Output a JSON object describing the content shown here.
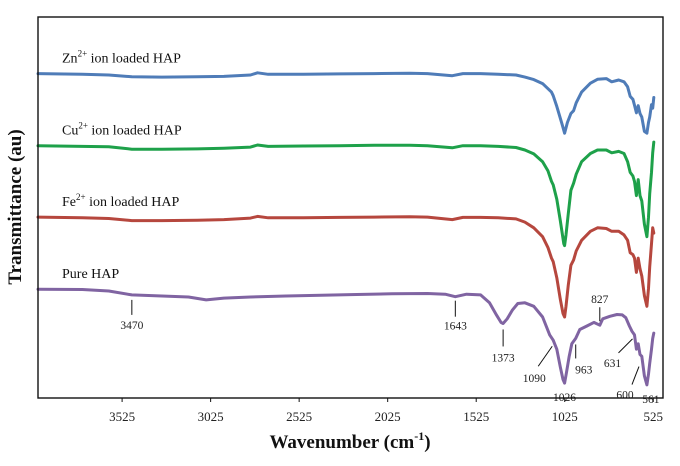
{
  "chart_data": {
    "type": "line",
    "title": "",
    "xlabel": "Wavenumber (cm-1)",
    "xlabel_parts": {
      "main": "Wavenumber (cm",
      "sup": "-1",
      "close": ")"
    },
    "ylabel": "Transmittance (au)",
    "xlim": [
      4000,
      470
    ],
    "ylim": [
      0,
      100
    ],
    "x_reversed": true,
    "grid": false,
    "legend": "inline labels above each trace (left)",
    "x_ticks": [
      3525,
      3025,
      2525,
      2025,
      1525,
      1025,
      525
    ],
    "x_tick_labels": [
      "3525",
      "3025",
      "2525",
      "2025",
      "1525",
      "1025",
      "525"
    ],
    "series": [
      {
        "name": "Zn2+ ion loaded HAP",
        "label_parts": {
          "pre": "Zn",
          "sup": "2+",
          "post": " ion loaded HAP"
        },
        "color": "#4f7cb8",
        "points": [
          [
            4000,
            89.2
          ],
          [
            3750,
            89.0
          ],
          [
            3600,
            88.8
          ],
          [
            3470,
            88.3
          ],
          [
            3300,
            88.2
          ],
          [
            3100,
            88.3
          ],
          [
            2950,
            88.4
          ],
          [
            2800,
            88.8
          ],
          [
            2760,
            89.4
          ],
          [
            2700,
            89.0
          ],
          [
            2500,
            89.0
          ],
          [
            2300,
            89.1
          ],
          [
            2100,
            89.2
          ],
          [
            1900,
            89.3
          ],
          [
            1800,
            89.2
          ],
          [
            1660,
            88.6
          ],
          [
            1600,
            89.2
          ],
          [
            1500,
            89.2
          ],
          [
            1400,
            89.0
          ],
          [
            1300,
            88.8
          ],
          [
            1250,
            88.2
          ],
          [
            1200,
            87.5
          ],
          [
            1150,
            86.4
          ],
          [
            1100,
            84.0
          ],
          [
            1090,
            83.0
          ],
          [
            1070,
            80.0
          ],
          [
            1040,
            75.0
          ],
          [
            1026,
            72.5
          ],
          [
            1010,
            75.5
          ],
          [
            990,
            78.0
          ],
          [
            975,
            78.8
          ],
          [
            960,
            81.0
          ],
          [
            930,
            84.0
          ],
          [
            880,
            86.5
          ],
          [
            840,
            87.6
          ],
          [
            790,
            87.8
          ],
          [
            760,
            86.9
          ],
          [
            720,
            87.4
          ],
          [
            690,
            86.9
          ],
          [
            670,
            85.5
          ],
          [
            655,
            82.8
          ],
          [
            640,
            82.0
          ],
          [
            631,
            80.3
          ],
          [
            620,
            78.2
          ],
          [
            610,
            80.2
          ],
          [
            600,
            78.0
          ],
          [
            590,
            77.0
          ],
          [
            575,
            73.0
          ],
          [
            561,
            72.5
          ],
          [
            552,
            75.5
          ],
          [
            545,
            77.0
          ],
          [
            535,
            80.5
          ],
          [
            528,
            79.5
          ],
          [
            522,
            82.5
          ]
        ]
      },
      {
        "name": "Cu2+ ion loaded HAP",
        "label_parts": {
          "pre": "Cu",
          "sup": "2+",
          "post": " ion loaded HAP"
        },
        "color": "#1ea14a",
        "points": [
          [
            4000,
            69.0
          ],
          [
            3750,
            68.8
          ],
          [
            3600,
            68.7
          ],
          [
            3470,
            68.0
          ],
          [
            3300,
            68.0
          ],
          [
            3100,
            68.1
          ],
          [
            2950,
            68.3
          ],
          [
            2800,
            68.6
          ],
          [
            2760,
            69.2
          ],
          [
            2700,
            68.8
          ],
          [
            2500,
            68.9
          ],
          [
            2300,
            69.0
          ],
          [
            2100,
            69.1
          ],
          [
            1900,
            69.1
          ],
          [
            1800,
            69.0
          ],
          [
            1660,
            68.4
          ],
          [
            1600,
            69.0
          ],
          [
            1500,
            69.0
          ],
          [
            1400,
            68.8
          ],
          [
            1300,
            68.5
          ],
          [
            1250,
            67.8
          ],
          [
            1200,
            66.7
          ],
          [
            1150,
            64.5
          ],
          [
            1120,
            62.0
          ],
          [
            1100,
            59.0
          ],
          [
            1090,
            58.0
          ],
          [
            1070,
            54.0
          ],
          [
            1050,
            48.0
          ],
          [
            1030,
            41.5
          ],
          [
            1026,
            41.0
          ],
          [
            1018,
            44.0
          ],
          [
            1005,
            50.0
          ],
          [
            990,
            56.5
          ],
          [
            975,
            58.5
          ],
          [
            960,
            61.0
          ],
          [
            930,
            64.5
          ],
          [
            880,
            66.8
          ],
          [
            840,
            67.8
          ],
          [
            790,
            67.8
          ],
          [
            760,
            67.0
          ],
          [
            720,
            67.4
          ],
          [
            690,
            66.8
          ],
          [
            670,
            64.5
          ],
          [
            655,
            61.5
          ],
          [
            640,
            60.5
          ],
          [
            631,
            59.0
          ],
          [
            620,
            55.0
          ],
          [
            610,
            59.5
          ],
          [
            600,
            55.0
          ],
          [
            590,
            53.5
          ],
          [
            575,
            47.0
          ],
          [
            561,
            43.5
          ],
          [
            552,
            49.0
          ],
          [
            545,
            55.5
          ],
          [
            535,
            61.5
          ],
          [
            528,
            67.0
          ],
          [
            522,
            70.0
          ]
        ]
      },
      {
        "name": "Fe2+ ion loaded HAP",
        "label_parts": {
          "pre": "Fe",
          "sup": "2+",
          "post": " ion loaded HAP"
        },
        "color": "#b6473e",
        "points": [
          [
            4000,
            49.0
          ],
          [
            3750,
            48.8
          ],
          [
            3600,
            48.6
          ],
          [
            3470,
            48.0
          ],
          [
            3300,
            48.0
          ],
          [
            3100,
            48.1
          ],
          [
            2950,
            48.3
          ],
          [
            2800,
            48.7
          ],
          [
            2760,
            49.2
          ],
          [
            2700,
            48.8
          ],
          [
            2500,
            48.8
          ],
          [
            2300,
            48.9
          ],
          [
            2100,
            49.0
          ],
          [
            1900,
            49.1
          ],
          [
            1800,
            49.0
          ],
          [
            1660,
            48.3
          ],
          [
            1600,
            48.9
          ],
          [
            1500,
            48.9
          ],
          [
            1400,
            48.8
          ],
          [
            1300,
            48.5
          ],
          [
            1250,
            47.6
          ],
          [
            1200,
            46.0
          ],
          [
            1150,
            43.5
          ],
          [
            1120,
            40.5
          ],
          [
            1100,
            37.5
          ],
          [
            1090,
            36.5
          ],
          [
            1070,
            32.0
          ],
          [
            1050,
            26.0
          ],
          [
            1035,
            22.0
          ],
          [
            1026,
            21.0
          ],
          [
            1018,
            24.0
          ],
          [
            1005,
            30.0
          ],
          [
            990,
            35.5
          ],
          [
            975,
            37.0
          ],
          [
            960,
            39.5
          ],
          [
            930,
            42.5
          ],
          [
            880,
            45.0
          ],
          [
            840,
            46.0
          ],
          [
            790,
            45.8
          ],
          [
            760,
            45.0
          ],
          [
            720,
            45.0
          ],
          [
            690,
            44.0
          ],
          [
            670,
            42.5
          ],
          [
            655,
            39.0
          ],
          [
            640,
            38.5
          ],
          [
            631,
            37.5
          ],
          [
            620,
            33.5
          ],
          [
            610,
            37.5
          ],
          [
            600,
            34.5
          ],
          [
            590,
            32.5
          ],
          [
            575,
            27.0
          ],
          [
            561,
            24.0
          ],
          [
            552,
            29.0
          ],
          [
            545,
            35.0
          ],
          [
            535,
            41.5
          ],
          [
            528,
            46.0
          ],
          [
            522,
            44.5
          ]
        ]
      },
      {
        "name": "Pure HAP",
        "label_parts": {
          "pre": "Pure HAP",
          "sup": "",
          "post": ""
        },
        "color": "#8064a2",
        "points": [
          [
            4000,
            28.8
          ],
          [
            3750,
            28.7
          ],
          [
            3600,
            28.3
          ],
          [
            3470,
            27.2
          ],
          [
            3300,
            26.9
          ],
          [
            3150,
            26.6
          ],
          [
            3050,
            25.8
          ],
          [
            2950,
            26.3
          ],
          [
            2800,
            26.6
          ],
          [
            2600,
            26.9
          ],
          [
            2400,
            27.1
          ],
          [
            2200,
            27.3
          ],
          [
            2000,
            27.5
          ],
          [
            1800,
            27.6
          ],
          [
            1700,
            27.4
          ],
          [
            1643,
            26.7
          ],
          [
            1580,
            27.4
          ],
          [
            1500,
            27.2
          ],
          [
            1450,
            25.0
          ],
          [
            1410,
            21.5
          ],
          [
            1385,
            19.5
          ],
          [
            1373,
            19.2
          ],
          [
            1350,
            20.5
          ],
          [
            1320,
            23.0
          ],
          [
            1290,
            24.8
          ],
          [
            1250,
            25.0
          ],
          [
            1200,
            24.0
          ],
          [
            1150,
            21.0
          ],
          [
            1110,
            16.0
          ],
          [
            1090,
            14.5
          ],
          [
            1070,
            12.0
          ],
          [
            1050,
            7.0
          ],
          [
            1035,
            3.5
          ],
          [
            1026,
            2.5
          ],
          [
            1015,
            5.5
          ],
          [
            1000,
            10.0
          ],
          [
            985,
            13.5
          ],
          [
            963,
            15.0
          ],
          [
            940,
            17.5
          ],
          [
            900,
            18.5
          ],
          [
            860,
            19.5
          ],
          [
            827,
            18.7
          ],
          [
            810,
            20.5
          ],
          [
            770,
            21.2
          ],
          [
            730,
            21.7
          ],
          [
            700,
            21.6
          ],
          [
            680,
            20.8
          ],
          [
            660,
            18.5
          ],
          [
            645,
            17.0
          ],
          [
            631,
            16.0
          ],
          [
            620,
            12.0
          ],
          [
            610,
            13.5
          ],
          [
            600,
            10.5
          ],
          [
            590,
            10.0
          ],
          [
            575,
            4.5
          ],
          [
            561,
            2.0
          ],
          [
            552,
            5.0
          ],
          [
            545,
            8.0
          ],
          [
            535,
            12.0
          ],
          [
            528,
            15.0
          ],
          [
            522,
            16.5
          ]
        ]
      }
    ],
    "annotations": [
      {
        "label": "3470",
        "x": 3470,
        "series": "Pure HAP"
      },
      {
        "label": "1643",
        "x": 1643,
        "series": "Pure HAP"
      },
      {
        "label": "1373",
        "x": 1373,
        "series": "Pure HAP"
      },
      {
        "label": "1090",
        "x": 1090,
        "series": "Pure HAP"
      },
      {
        "label": "1026",
        "x": 1026,
        "series": "Pure HAP"
      },
      {
        "label": "963",
        "x": 963,
        "series": "Pure HAP"
      },
      {
        "label": "827",
        "x": 827,
        "series": "Pure HAP"
      },
      {
        "label": "631",
        "x": 631,
        "series": "Pure HAP"
      },
      {
        "label": "600",
        "x": 600,
        "series": "Pure HAP"
      },
      {
        "label": "561",
        "x": 561,
        "series": "Pure HAP"
      }
    ]
  }
}
